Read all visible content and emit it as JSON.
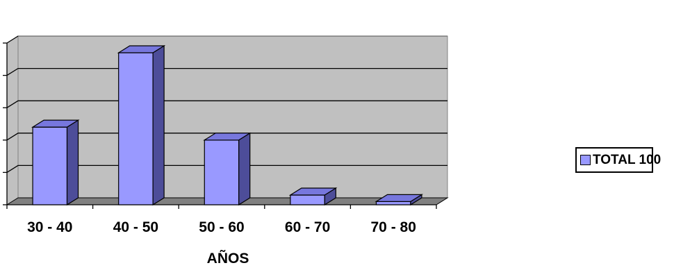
{
  "chart_data": {
    "type": "bar",
    "categories": [
      "30 - 40",
      "40 - 50",
      "50 - 60",
      "60 - 70",
      "70 - 80"
    ],
    "series": [
      {
        "name": "TOTAL 100",
        "values": [
          24,
          47,
          20,
          3,
          1
        ]
      }
    ],
    "title": "",
    "xlabel": "AÑOS",
    "ylabel": "",
    "ylim": [
      0,
      50
    ],
    "y_gridline_step": 10,
    "grid": true,
    "three_d": true,
    "legend_position": "right",
    "colors": {
      "bar_front": "#9999ff",
      "bar_side": "#4d4d99",
      "bar_top": "#7777dd",
      "plot_wall": "#c0c0c0",
      "floor": "#808080",
      "gridline": "#000000"
    }
  }
}
